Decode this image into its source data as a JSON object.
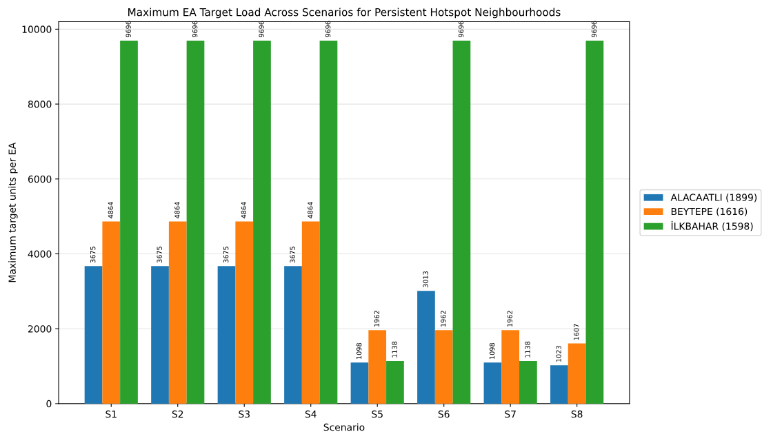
{
  "chart_data": {
    "type": "bar",
    "title": "Maximum EA Target Load Across Scenarios for Persistent Hotspot Neighbourhoods",
    "xlabel": "Scenario",
    "ylabel": "Maximum target units per EA",
    "categories": [
      "S1",
      "S2",
      "S3",
      "S4",
      "S5",
      "S6",
      "S7",
      "S8"
    ],
    "series": [
      {
        "name": "ALACAATLI (1899)",
        "color": "#1f77b4",
        "values": [
          3675,
          3675,
          3675,
          3675,
          1098,
          3013,
          1098,
          1023
        ]
      },
      {
        "name": "BEYTEPE (1616)",
        "color": "#ff7f0e",
        "values": [
          4864,
          4864,
          4864,
          4864,
          1962,
          1962,
          1962,
          1607
        ]
      },
      {
        "name": "İLKBAHAR (1598)",
        "color": "#2ca02c",
        "values": [
          9696,
          9696,
          9696,
          9696,
          1138,
          9696,
          1138,
          9696
        ]
      }
    ],
    "ylim": [
      0,
      10200
    ],
    "yticks": [
      0,
      2000,
      4000,
      6000,
      8000,
      10000
    ],
    "grid": "y",
    "legend": "right",
    "data_labels": true
  }
}
